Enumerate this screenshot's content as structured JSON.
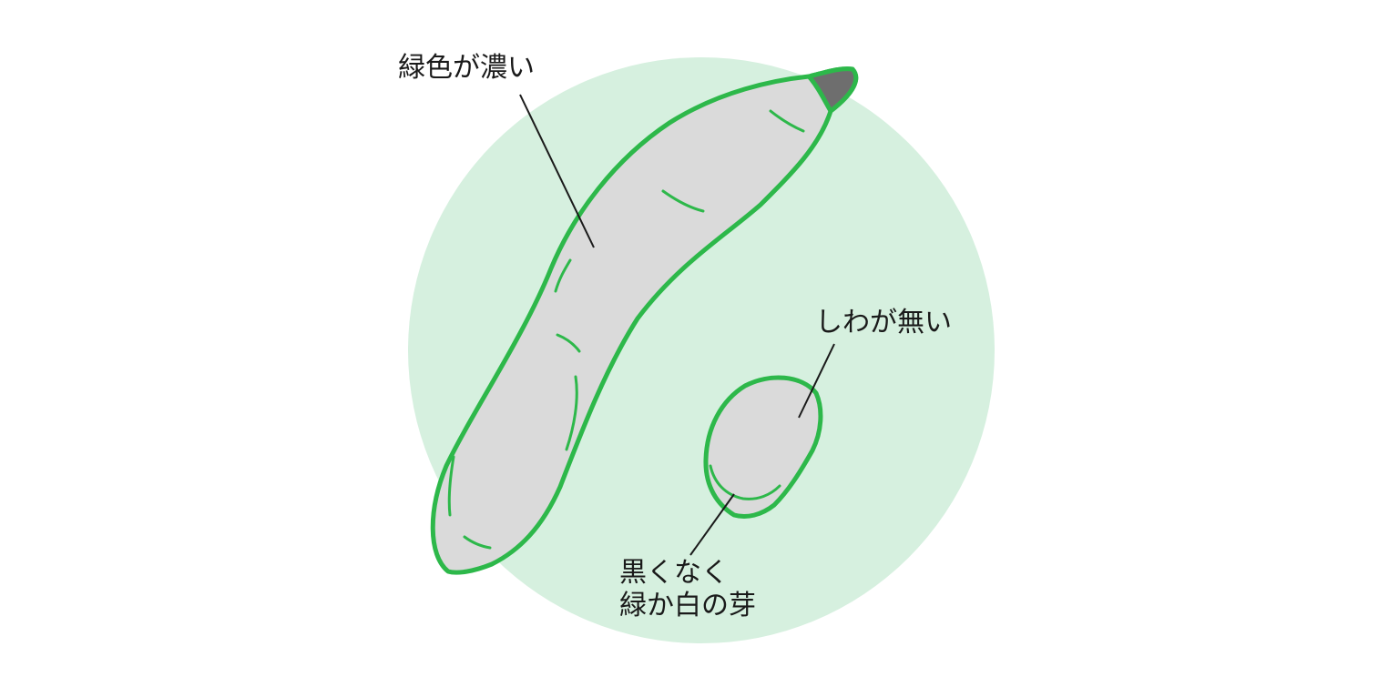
{
  "colors": {
    "background_circle": "#d6f0df",
    "outline_green": "#2db84a",
    "vegetable_fill": "#dadada",
    "stem_tip": "#6e6e6e",
    "leader_line": "#1a1a1a",
    "label_text": "#1a1a1a"
  },
  "labels": {
    "deep_green": "緑色が濃い",
    "no_wrinkles": "しわが無い",
    "sprout_line1": "黒くなく",
    "sprout_line2": "緑か白の芽"
  }
}
